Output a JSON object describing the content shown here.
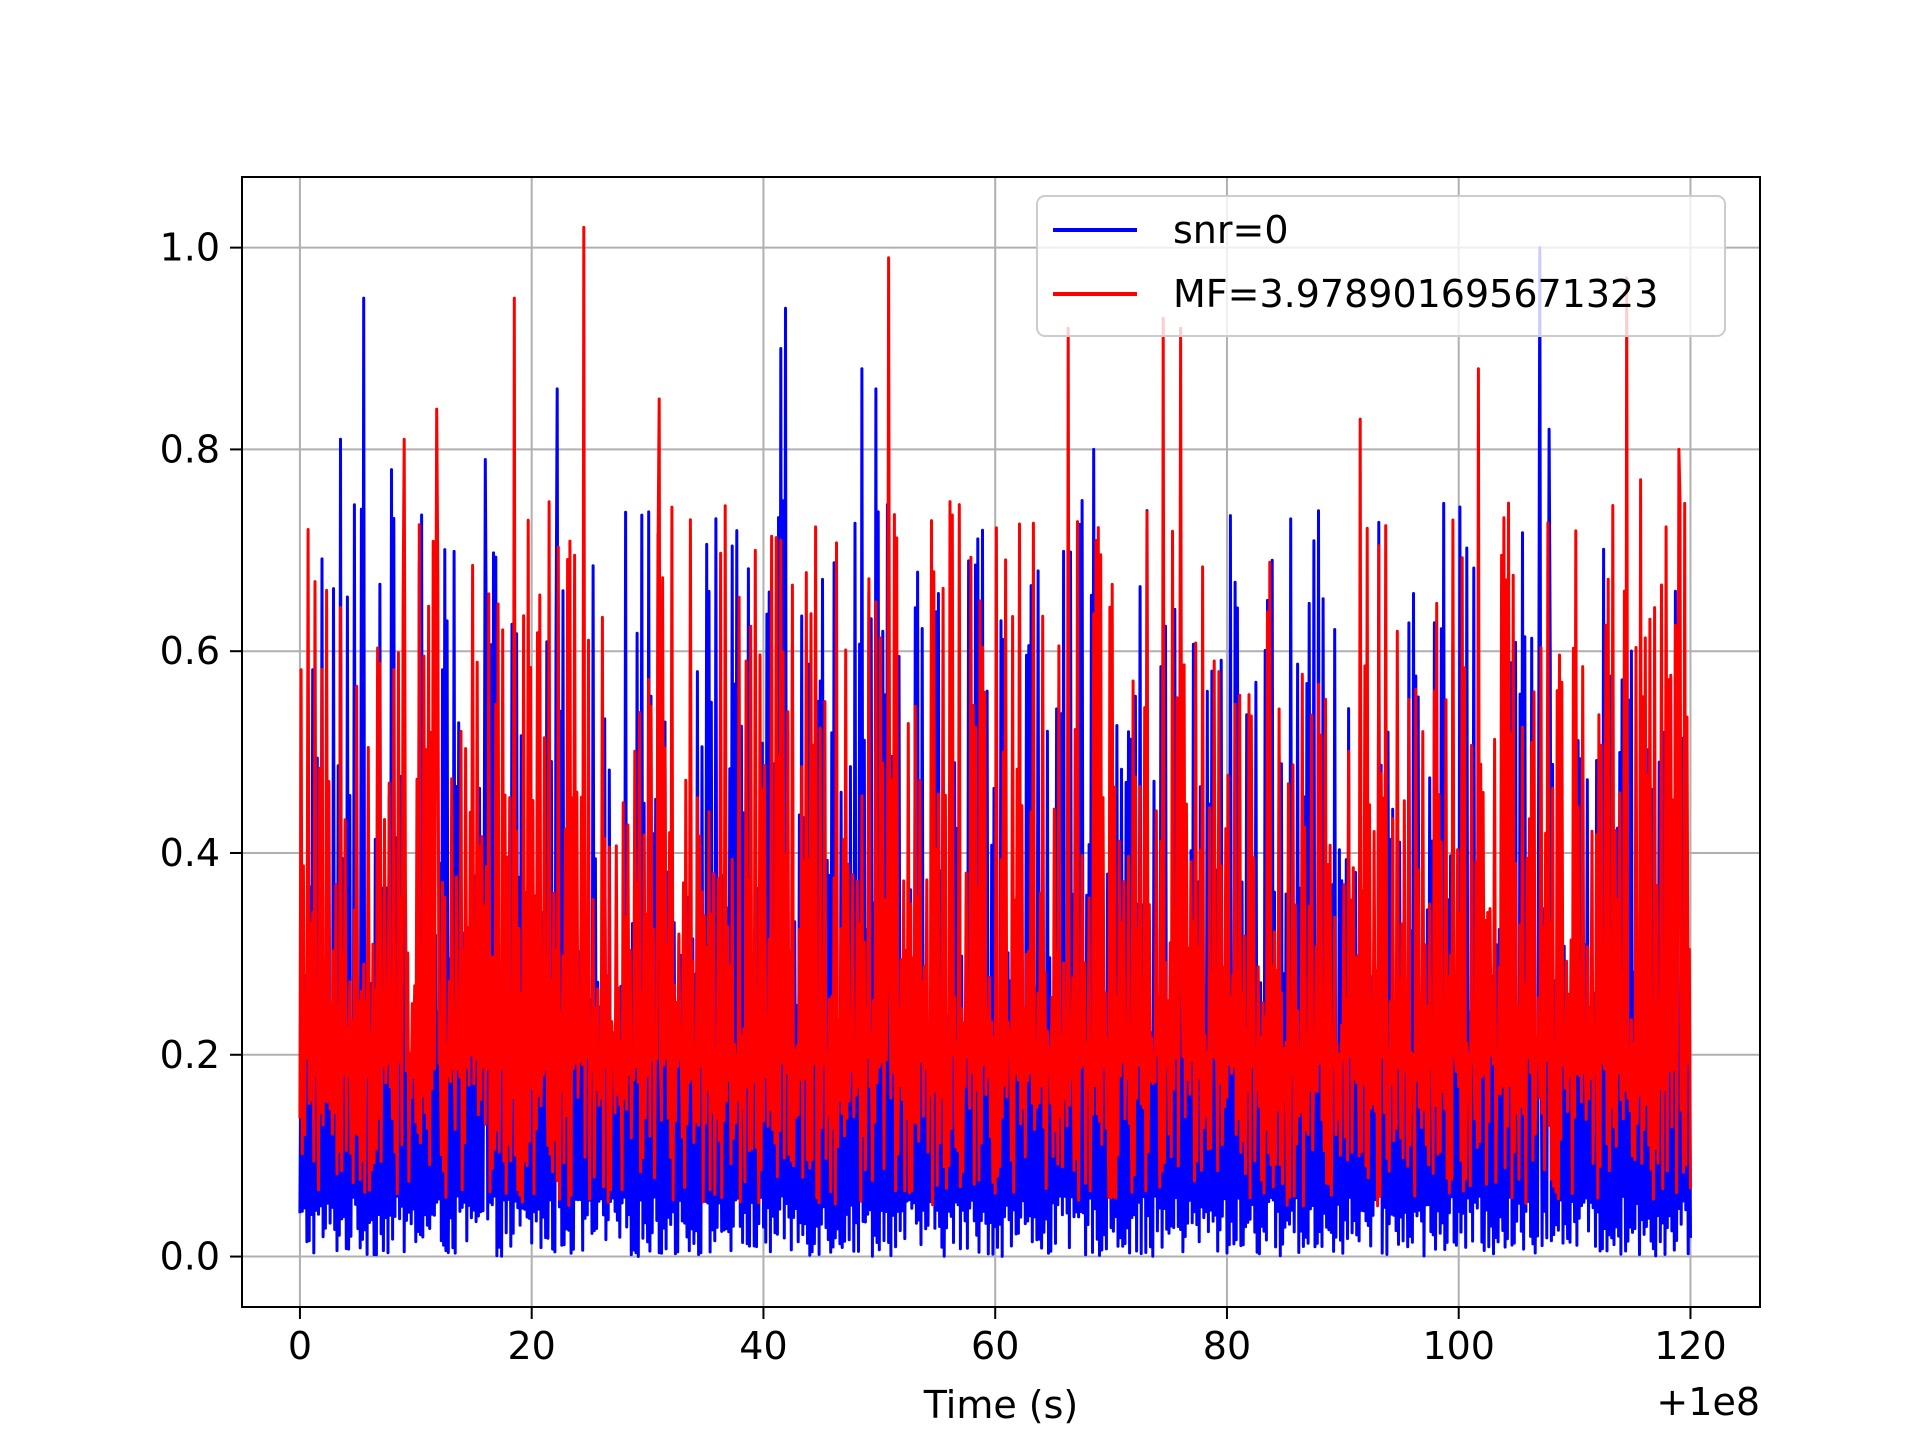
{
  "chart_data": {
    "type": "line",
    "title": "",
    "xlabel": "Time (s)",
    "ylabel": "",
    "x_offset_label": "+1e8",
    "xlim": [
      -5,
      126
    ],
    "ylim": [
      -0.05,
      1.07
    ],
    "xticks": [
      0,
      20,
      40,
      60,
      80,
      100,
      120
    ],
    "xtick_labels": [
      "0",
      "20",
      "40",
      "60",
      "80",
      "100",
      "120"
    ],
    "yticks": [
      0.0,
      0.2,
      0.4,
      0.6,
      0.8,
      1.0
    ],
    "ytick_labels": [
      "0.0",
      "0.2",
      "0.4",
      "0.6",
      "0.8",
      "1.0"
    ],
    "grid": true,
    "legend_position": "top-right",
    "x_range": [
      0,
      120
    ],
    "samples": 1200,
    "series": [
      {
        "name": "snr=0",
        "color": "#0000ff",
        "baseline_range": [
          0.0,
          0.06
        ],
        "peaks": [
          {
            "x": 3.5,
            "y": 0.81
          },
          {
            "x": 5.5,
            "y": 0.95
          },
          {
            "x": 7.9,
            "y": 0.78
          },
          {
            "x": 16,
            "y": 0.79
          },
          {
            "x": 22.2,
            "y": 0.86
          },
          {
            "x": 41.5,
            "y": 0.9
          },
          {
            "x": 41.9,
            "y": 0.94
          },
          {
            "x": 48.5,
            "y": 0.88
          },
          {
            "x": 49.7,
            "y": 0.86
          },
          {
            "x": 68.5,
            "y": 0.8
          },
          {
            "x": 107,
            "y": 1.0
          },
          {
            "x": 107.8,
            "y": 0.82
          }
        ]
      },
      {
        "name": "MF=3.978901695671323",
        "color": "#ff0000",
        "baseline_range": [
          0.05,
          0.2
        ],
        "peaks": [
          {
            "x": 9,
            "y": 0.81
          },
          {
            "x": 11.8,
            "y": 0.84
          },
          {
            "x": 18.5,
            "y": 0.95
          },
          {
            "x": 24.5,
            "y": 1.02
          },
          {
            "x": 31,
            "y": 0.85
          },
          {
            "x": 50.8,
            "y": 0.99
          },
          {
            "x": 66.3,
            "y": 0.92
          },
          {
            "x": 74.5,
            "y": 0.93
          },
          {
            "x": 76,
            "y": 0.92
          },
          {
            "x": 91.5,
            "y": 0.83
          },
          {
            "x": 101.7,
            "y": 0.88
          },
          {
            "x": 114.5,
            "y": 0.97
          },
          {
            "x": 115.7,
            "y": 0.77
          },
          {
            "x": 119,
            "y": 0.8
          }
        ]
      }
    ]
  }
}
